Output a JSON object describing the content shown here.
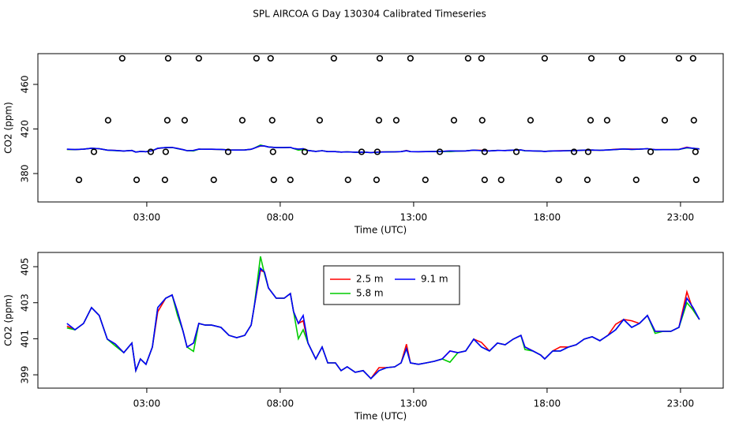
{
  "title": "SPL AIRCOA G  Day 130304  Calibrated Timeseries",
  "chart_data": [
    {
      "type": "scatter",
      "xlabel": "Time (UTC)",
      "ylabel": "CO2 (ppm)",
      "xlim": [
        -1.08,
        24.6
      ],
      "xticks": [
        {
          "value": 3,
          "label": "03:00"
        },
        {
          "value": 8,
          "label": "08:00"
        },
        {
          "value": 13,
          "label": "13:00"
        },
        {
          "value": 18,
          "label": "18:00"
        },
        {
          "value": 23,
          "label": "23:00"
        }
      ],
      "ylim": [
        354.5,
        487.6
      ],
      "yticks": [
        380,
        420,
        460
      ],
      "color": "#000000",
      "points": {
        "x": [
          2.08,
          3.8,
          4.95,
          7.11,
          7.64,
          10.01,
          11.73,
          12.88,
          15.04,
          15.54,
          17.91,
          19.66,
          20.81,
          22.94,
          23.47,
          1.55,
          3.77,
          4.42,
          6.58,
          7.7,
          9.48,
          11.7,
          12.35,
          14.51,
          15.57,
          17.38,
          19.63,
          20.25,
          22.41,
          23.5,
          1.02,
          3.15,
          3.71,
          6.05,
          7.73,
          8.92,
          11.05,
          11.64,
          13.98,
          15.66,
          16.85,
          19.01,
          19.54,
          21.88,
          23.56,
          0.46,
          2.62,
          3.68,
          5.51,
          7.76,
          8.38,
          10.54,
          11.61,
          13.44,
          15.66,
          16.28,
          18.44,
          19.51,
          21.34,
          23.59
        ],
        "y": [
          483.4,
          483.4,
          483.4,
          483.4,
          483.4,
          483.4,
          483.4,
          483.4,
          483.4,
          483.4,
          483.4,
          483.4,
          483.4,
          483.4,
          483.4,
          427.8,
          427.8,
          427.8,
          427.8,
          427.8,
          427.8,
          427.8,
          427.8,
          427.8,
          427.8,
          427.8,
          427.8,
          427.8,
          427.8,
          427.8,
          399.5,
          399.5,
          399.5,
          399.5,
          399.5,
          399.5,
          399.5,
          399.5,
          399.5,
          399.5,
          399.5,
          399.5,
          399.5,
          399.5,
          399.5,
          374.3,
          374.3,
          374.3,
          374.3,
          374.3,
          374.3,
          374.3,
          374.3,
          374.3,
          374.3,
          374.3,
          374.3,
          374.3,
          374.3,
          374.3
        ]
      }
    },
    {
      "type": "line",
      "xlabel": "Time (UTC)",
      "ylabel": "CO2 (ppm)",
      "xlim": [
        -1.08,
        24.6
      ],
      "xticks": [
        {
          "value": 3,
          "label": "03:00"
        },
        {
          "value": 8,
          "label": "08:00"
        },
        {
          "value": 13,
          "label": "13:00"
        },
        {
          "value": 18,
          "label": "18:00"
        },
        {
          "value": 23,
          "label": "23:00"
        }
      ],
      "ylim": [
        398.26,
        405.79
      ],
      "yticks": [
        399,
        401,
        403,
        405
      ],
      "legend": "top",
      "x": [
        0.01,
        0.31,
        0.63,
        0.93,
        1.22,
        1.52,
        1.82,
        2.14,
        2.44,
        2.59,
        2.76,
        2.97,
        3.21,
        3.41,
        3.71,
        3.95,
        4.15,
        4.36,
        4.51,
        4.75,
        4.95,
        5.19,
        5.43,
        5.78,
        6.08,
        6.37,
        6.67,
        6.91,
        7.02,
        7.26,
        7.41,
        7.56,
        7.85,
        8.15,
        8.38,
        8.5,
        8.68,
        8.86,
        9.04,
        9.33,
        9.57,
        9.78,
        10.07,
        10.28,
        10.51,
        10.81,
        11.11,
        11.4,
        11.7,
        11.99,
        12.29,
        12.53,
        12.73,
        12.88,
        13.18,
        13.47,
        13.77,
        14.07,
        14.36,
        14.66,
        14.95,
        15.25,
        15.54,
        15.84,
        16.14,
        16.43,
        16.73,
        17.02,
        17.17,
        17.47,
        17.76,
        17.91,
        18.21,
        18.5,
        18.8,
        19.09,
        19.39,
        19.69,
        19.98,
        20.28,
        20.57,
        20.87,
        21.17,
        21.46,
        21.76,
        22.05,
        22.35,
        22.64,
        22.94,
        23.24,
        23.47,
        23.71
      ],
      "series": [
        {
          "name": "2.5 m",
          "color": "#ff0000",
          "values": [
            401.7,
            401.5,
            401.85,
            402.73,
            402.29,
            400.98,
            400.71,
            400.23,
            400.76,
            399.23,
            399.88,
            399.58,
            400.54,
            402.5,
            403.25,
            403.43,
            402.51,
            401.41,
            400.54,
            400.76,
            401.85,
            401.76,
            401.76,
            401.63,
            401.19,
            401.06,
            401.19,
            401.76,
            402.73,
            404.8,
            404.7,
            403.82,
            403.25,
            403.25,
            403.51,
            402.51,
            401.85,
            402.0,
            400.76,
            399.88,
            400.54,
            399.66,
            399.66,
            399.23,
            399.44,
            399.14,
            399.23,
            398.79,
            399.4,
            399.4,
            399.44,
            399.66,
            400.7,
            399.66,
            399.58,
            399.66,
            399.75,
            399.88,
            400.32,
            400.23,
            400.32,
            400.98,
            400.8,
            400.32,
            400.76,
            400.67,
            400.98,
            401.19,
            400.54,
            400.32,
            400.1,
            399.88,
            400.32,
            400.55,
            400.54,
            400.67,
            400.98,
            401.11,
            400.89,
            401.19,
            401.8,
            402.07,
            402.0,
            401.85,
            402.29,
            401.41,
            401.41,
            401.41,
            401.63,
            403.6,
            402.6,
            402.07
          ]
        },
        {
          "name": "5.8 m",
          "color": "#00cc00",
          "values": [
            401.6,
            401.5,
            401.85,
            402.73,
            402.29,
            400.98,
            400.6,
            400.23,
            400.76,
            399.23,
            399.88,
            399.58,
            400.54,
            402.73,
            403.25,
            403.43,
            402.3,
            401.41,
            400.54,
            400.3,
            401.85,
            401.76,
            401.76,
            401.63,
            401.19,
            401.06,
            401.19,
            401.76,
            402.73,
            405.57,
            404.6,
            403.82,
            403.25,
            403.25,
            403.51,
            402.51,
            401.0,
            401.5,
            400.76,
            399.88,
            400.54,
            399.66,
            399.66,
            399.23,
            399.44,
            399.14,
            399.23,
            398.79,
            399.23,
            399.4,
            399.44,
            399.66,
            400.45,
            399.66,
            399.58,
            399.66,
            399.75,
            399.88,
            399.7,
            400.23,
            400.32,
            400.98,
            400.54,
            400.32,
            400.76,
            400.67,
            400.98,
            401.19,
            400.4,
            400.32,
            400.1,
            399.88,
            400.32,
            400.32,
            400.54,
            400.67,
            400.98,
            401.11,
            400.89,
            401.19,
            401.5,
            402.07,
            401.63,
            401.85,
            402.29,
            401.3,
            401.41,
            401.41,
            401.63,
            403.0,
            402.6,
            402.07
          ]
        },
        {
          "name": "9.1 m",
          "color": "#0000ff",
          "values": [
            401.85,
            401.5,
            401.85,
            402.73,
            402.29,
            400.98,
            400.71,
            400.23,
            400.76,
            399.23,
            399.88,
            399.58,
            400.54,
            402.73,
            403.25,
            403.43,
            402.51,
            401.41,
            400.54,
            400.76,
            401.85,
            401.76,
            401.76,
            401.63,
            401.19,
            401.06,
            401.19,
            401.76,
            402.73,
            404.91,
            404.7,
            403.82,
            403.25,
            403.25,
            403.51,
            402.51,
            401.85,
            402.29,
            400.76,
            399.88,
            400.54,
            399.66,
            399.66,
            399.23,
            399.44,
            399.14,
            399.23,
            398.79,
            399.23,
            399.4,
            399.44,
            399.66,
            400.45,
            399.66,
            399.58,
            399.66,
            399.75,
            399.88,
            400.32,
            400.23,
            400.32,
            400.98,
            400.54,
            400.32,
            400.76,
            400.67,
            400.98,
            401.19,
            400.54,
            400.32,
            400.1,
            399.88,
            400.32,
            400.32,
            400.54,
            400.67,
            400.98,
            401.11,
            400.89,
            401.19,
            401.5,
            402.07,
            401.63,
            401.85,
            402.29,
            401.41,
            401.41,
            401.41,
            401.63,
            403.25,
            402.73,
            402.07
          ]
        }
      ]
    }
  ]
}
